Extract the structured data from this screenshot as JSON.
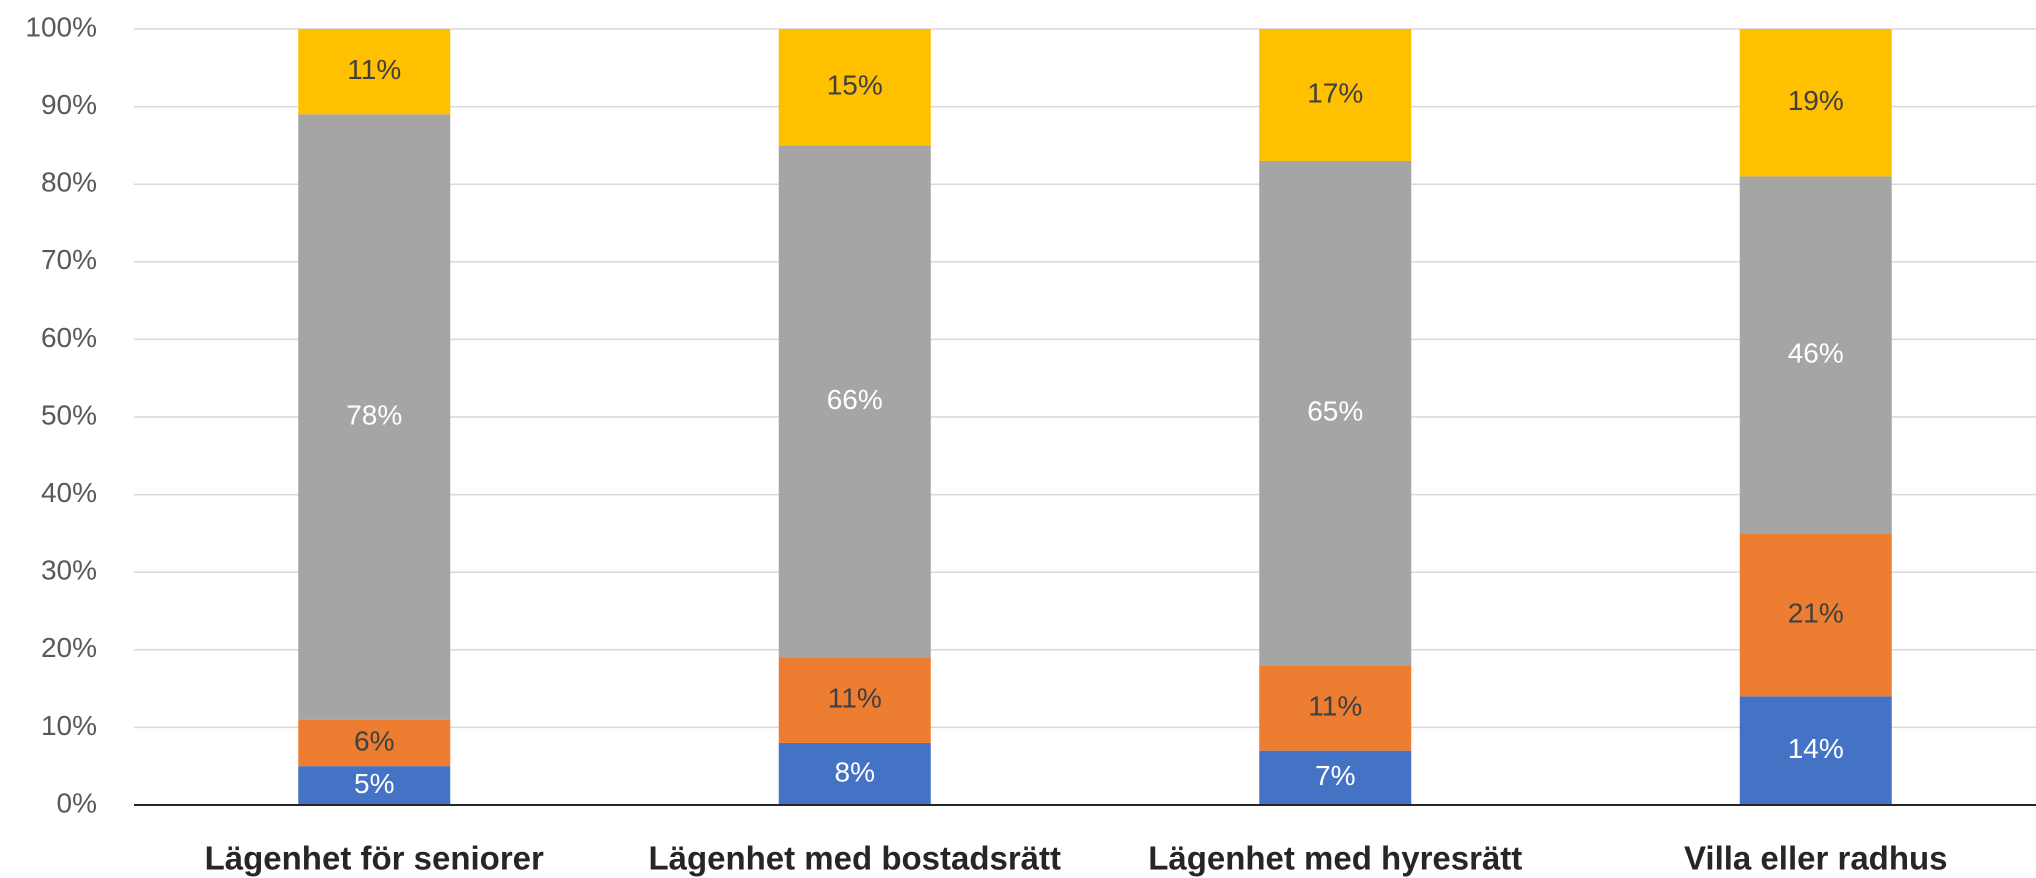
{
  "chart_data": {
    "type": "stacked_bar",
    "categories": [
      "Lägenhet för seniorer",
      "Lägenhet med bostadsrätt",
      "Lägenhet med hyresrätt",
      "Villa eller radhus"
    ],
    "series": [
      {
        "color": "#4472c4",
        "label_color": "#ffffff",
        "values": [
          5,
          8,
          7,
          14
        ],
        "value_labels": [
          "5%",
          "8%",
          "7%",
          "14%"
        ]
      },
      {
        "color": "#ed7d31",
        "label_color": "#404040",
        "values": [
          6,
          11,
          11,
          21
        ],
        "value_labels": [
          "6%",
          "11%",
          "11%",
          "21%"
        ]
      },
      {
        "color": "#a5a5a5",
        "label_color": "#ffffff",
        "values": [
          78,
          66,
          65,
          46
        ],
        "value_labels": [
          "78%",
          "66%",
          "65%",
          "46%"
        ]
      },
      {
        "color": "#ffc000",
        "label_color": "#404040",
        "values": [
          11,
          15,
          17,
          19
        ],
        "value_labels": [
          "11%",
          "15%",
          "17%",
          "19%"
        ]
      }
    ],
    "ylim": [
      0,
      100
    ],
    "yticks": [
      {
        "value": 0,
        "label": "0%"
      },
      {
        "value": 10,
        "label": "10%"
      },
      {
        "value": 20,
        "label": "20%"
      },
      {
        "value": 30,
        "label": "30%"
      },
      {
        "value": 40,
        "label": "40%"
      },
      {
        "value": 50,
        "label": "50%"
      },
      {
        "value": 60,
        "label": "60%"
      },
      {
        "value": 70,
        "label": "70%"
      },
      {
        "value": 80,
        "label": "80%"
      },
      {
        "value": 90,
        "label": "90%"
      },
      {
        "value": 100,
        "label": "100%"
      }
    ],
    "grid": true
  }
}
